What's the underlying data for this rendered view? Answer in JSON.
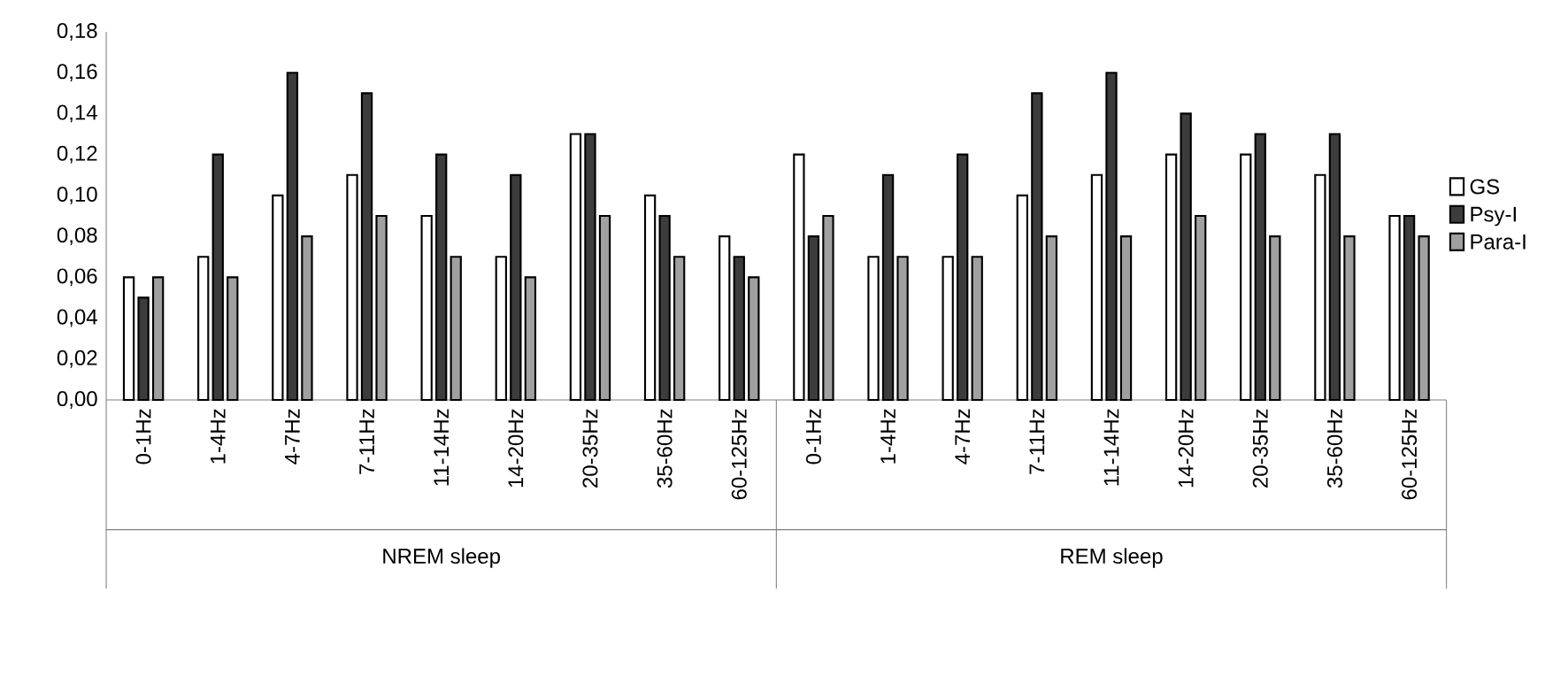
{
  "chart_data": {
    "type": "bar",
    "categories": [
      "0-1Hz",
      "1-4Hz",
      "4-7Hz",
      "7-11Hz",
      "11-14Hz",
      "14-20Hz",
      "20-35Hz",
      "35-60Hz",
      "60-125Hz",
      "0-1Hz",
      "1-4Hz",
      "4-7Hz",
      "7-11Hz",
      "11-14Hz",
      "14-20Hz",
      "20-35Hz",
      "35-60Hz",
      "60-125Hz"
    ],
    "series": [
      {
        "name": "GS",
        "color": "#ffffff",
        "values": [
          0.06,
          0.07,
          0.1,
          0.11,
          0.09,
          0.07,
          0.13,
          0.1,
          0.08,
          0.12,
          0.07,
          0.07,
          0.1,
          0.11,
          0.12,
          0.12,
          0.11,
          0.09
        ]
      },
      {
        "name": "Psy-I",
        "color": "#3c3c3c",
        "values": [
          0.05,
          0.12,
          0.16,
          0.15,
          0.12,
          0.11,
          0.13,
          0.09,
          0.07,
          0.08,
          0.11,
          0.12,
          0.15,
          0.16,
          0.14,
          0.13,
          0.13,
          0.09
        ]
      },
      {
        "name": "Para-I",
        "color": "#a0a0a0",
        "values": [
          0.06,
          0.06,
          0.08,
          0.09,
          0.07,
          0.06,
          0.09,
          0.07,
          0.06,
          0.09,
          0.07,
          0.07,
          0.08,
          0.08,
          0.09,
          0.08,
          0.08,
          0.08
        ]
      }
    ],
    "ylim": [
      0,
      0.18
    ],
    "yticks": [
      {
        "value": 0,
        "label": "0,00"
      },
      {
        "value": 0.02,
        "label": "0,02"
      },
      {
        "value": 0.04,
        "label": "0,04"
      },
      {
        "value": 0.06,
        "label": "0,06"
      },
      {
        "value": 0.08,
        "label": "0,08"
      },
      {
        "value": 0.1,
        "label": "0,10"
      },
      {
        "value": 0.12,
        "label": "0,12"
      },
      {
        "value": 0.14,
        "label": "0,14"
      },
      {
        "value": 0.16,
        "label": "0,16"
      },
      {
        "value": 0.18,
        "label": "0,18"
      }
    ],
    "annotations": [
      "NREM sleep",
      "REM sleep"
    ],
    "legend": "right",
    "grid": false
  }
}
